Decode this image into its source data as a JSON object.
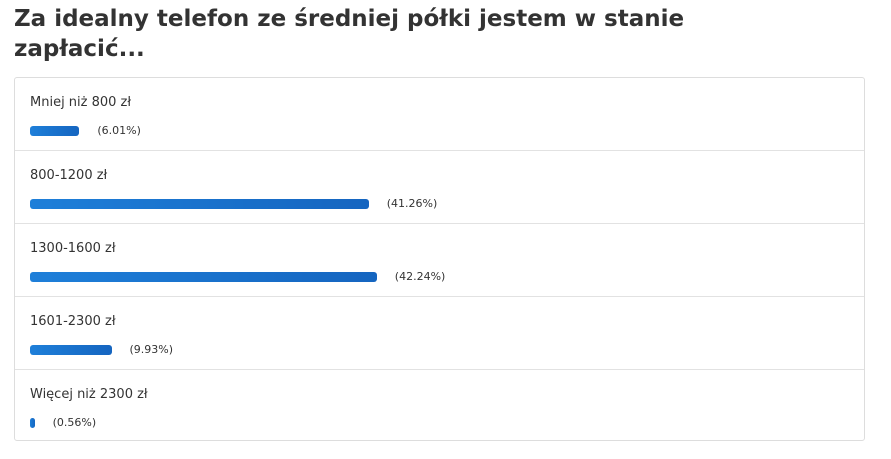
{
  "chart_data": {
    "type": "bar",
    "orientation": "horizontal",
    "title": "Za idealny telefon ze średniej półki jestem w stanie zapłacić...",
    "categories": [
      "Mniej niż 800 zł",
      "800-1200 zł",
      "1300-1600 zł",
      "1601-2300 zł",
      "Więcej niż 2300 zł"
    ],
    "values": [
      6.01,
      41.26,
      42.24,
      9.93,
      0.56
    ],
    "value_labels": [
      "(6.01%)",
      "(41.26%)",
      "(42.24%)",
      "(9.93%)",
      "(0.56%)"
    ],
    "color": "#1e7fd9",
    "xlim": [
      0,
      100
    ]
  }
}
